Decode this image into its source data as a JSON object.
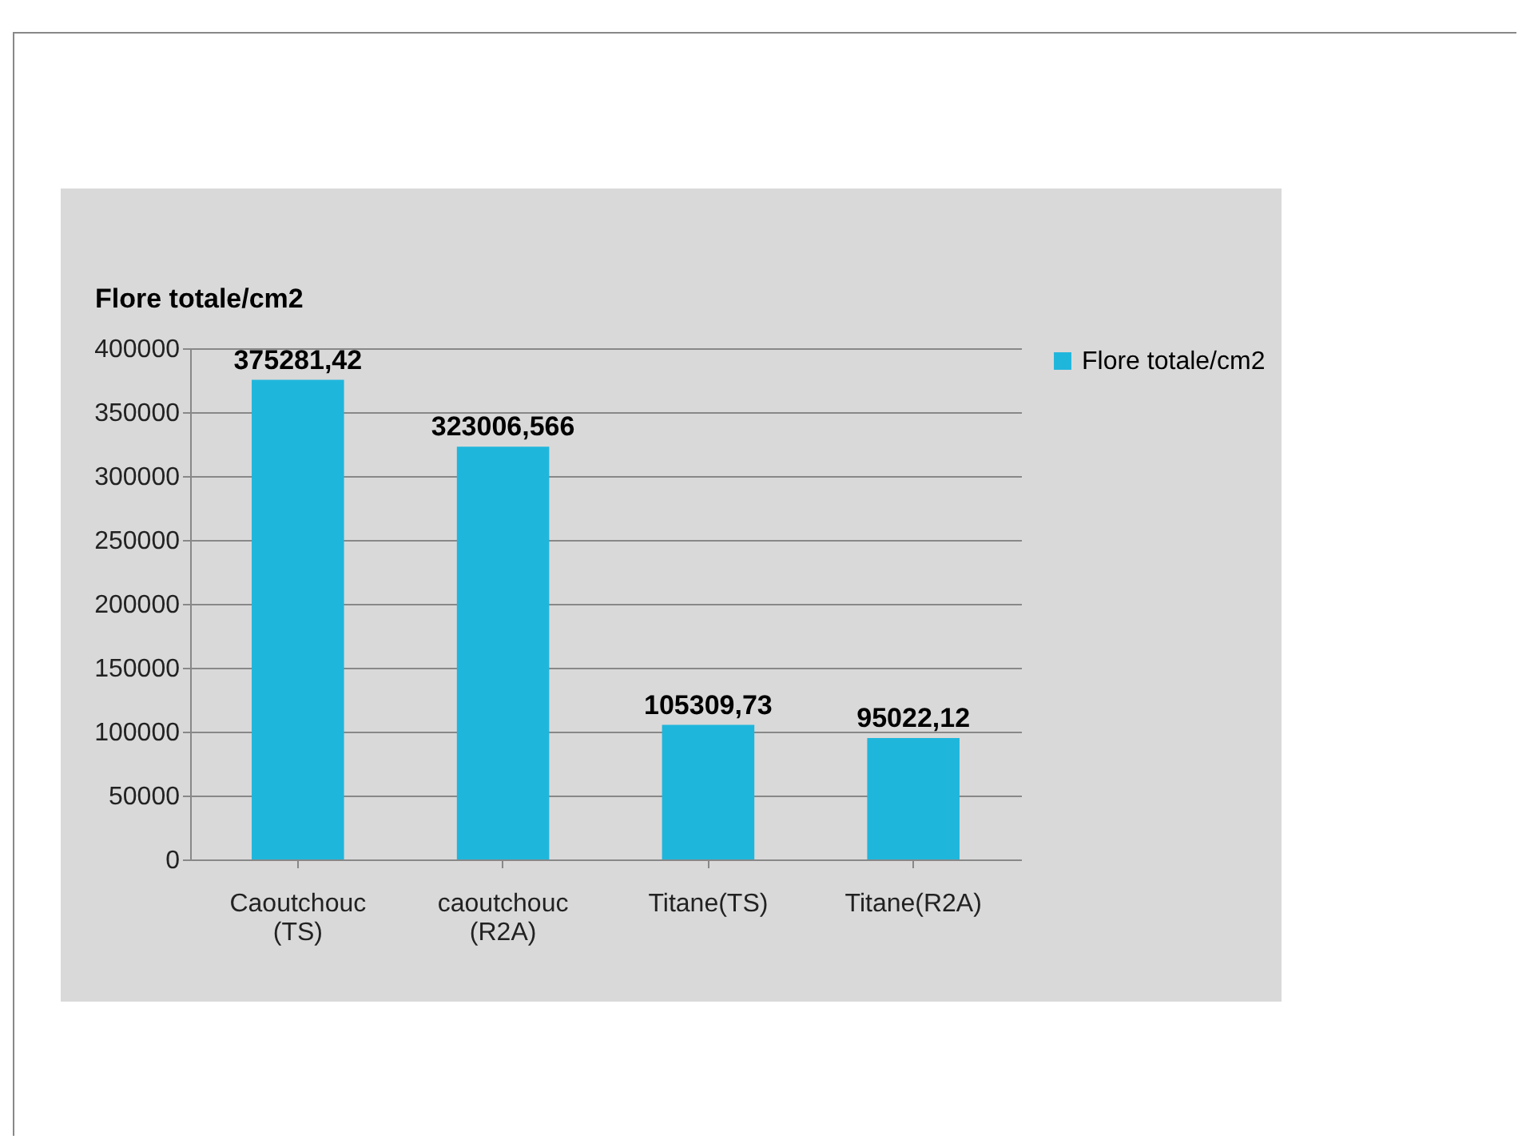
{
  "chart_data": {
    "type": "bar",
    "ylabel": "Flore totale/cm2",
    "categories": [
      "Caoutchouc (TS)",
      "caoutchouc (R2A)",
      "Titane(TS)",
      "Titane(R2A)"
    ],
    "series": [
      {
        "name": "Flore totale/cm2",
        "color": "#1fb6dc",
        "values": [
          375281.42,
          323006.566,
          105309.73,
          95022.12
        ],
        "value_labels": [
          "375281,42",
          "323006,566",
          "105309,73",
          "95022,12"
        ]
      }
    ],
    "ylim": [
      0,
      400000
    ],
    "yticks": [
      0,
      50000,
      100000,
      150000,
      200000,
      250000,
      300000,
      350000,
      400000
    ],
    "grid": "y",
    "legend": "right"
  }
}
